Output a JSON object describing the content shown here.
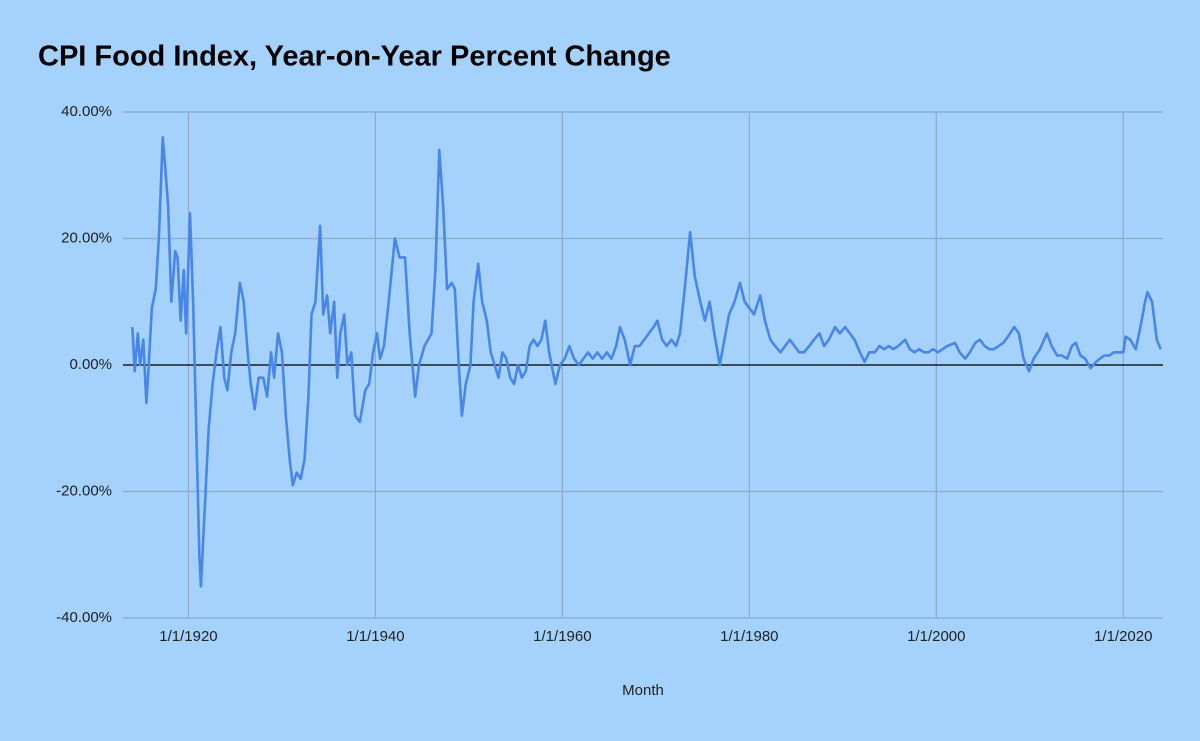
{
  "chart_data": {
    "type": "line",
    "title": "CPI Food Index, Year-on-Year Percent Change",
    "x_label": "Month",
    "color": "#4a86e8",
    "grid": true,
    "xlim": [
      "1/1/1913",
      "4/1/2024"
    ],
    "xticks": [
      "1/1/1920",
      "1/1/1940",
      "1/1/1960",
      "1/1/1980",
      "1/1/2000",
      "1/1/2020"
    ],
    "ylim": [
      -40,
      40
    ],
    "yticks": [
      {
        "value": -40,
        "label": "-40.00%"
      },
      {
        "value": -20,
        "label": "-20.00%"
      },
      {
        "value": 0,
        "label": "0.00%"
      },
      {
        "value": 20,
        "label": "20.00%"
      },
      {
        "value": 40,
        "label": "40.00%"
      }
    ],
    "x": [
      "1/1/1914",
      "4/1/1914",
      "8/1/1914",
      "11/1/1914",
      "3/1/1915",
      "7/1/1915",
      "10/1/1915",
      "2/1/1916",
      "7/1/1916",
      "11/1/1916",
      "4/1/1917",
      "8/1/1917",
      "11/1/1917",
      "3/1/1918",
      "8/1/1918",
      "11/1/1918",
      "3/1/1919",
      "7/1/1919",
      "10/1/1919",
      "3/1/1920",
      "7/1/1920",
      "11/1/1920",
      "3/1/1921",
      "5/1/1921",
      "11/1/1921",
      "3/1/1922",
      "8/1/1922",
      "1/1/1923",
      "6/1/1923",
      "11/1/1923",
      "3/1/1924",
      "8/1/1924",
      "1/1/1925",
      "7/1/1925",
      "12/1/1925",
      "5/1/1926",
      "9/1/1926",
      "2/1/1927",
      "7/1/1927",
      "1/1/1928",
      "6/1/1928",
      "11/1/1928",
      "3/1/1929",
      "8/1/1929",
      "1/1/1930",
      "6/1/1930",
      "11/1/1930",
      "3/1/1931",
      "8/1/1931",
      "1/1/1932",
      "6/1/1932",
      "11/1/1932",
      "3/1/1933",
      "8/1/1933",
      "2/1/1934",
      "6/1/1934",
      "11/1/1934",
      "3/1/1935",
      "8/1/1935",
      "12/1/1935",
      "4/1/1936",
      "9/1/1936",
      "1/1/1937",
      "6/1/1937",
      "11/1/1937",
      "5/1/1938",
      "12/1/1938",
      "5/1/1939",
      "10/1/1939",
      "3/1/1940",
      "7/1/1940",
      "12/1/1940",
      "6/1/1941",
      "2/1/1942",
      "8/1/1942",
      "3/1/1943",
      "9/1/1943",
      "4/1/1944",
      "9/1/1944",
      "4/1/1945",
      "1/1/1946",
      "6/1/1946",
      "11/1/1946",
      "4/1/1947",
      "9/1/1947",
      "3/1/1948",
      "7/1/1948",
      "12/1/1948",
      "4/1/1949",
      "9/1/1949",
      "3/1/1950",
      "7/1/1950",
      "1/1/1951",
      "6/1/1951",
      "12/1/1951",
      "5/1/1952",
      "10/1/1952",
      "3/1/1953",
      "8/1/1953",
      "1/1/1954",
      "6/1/1954",
      "11/1/1954",
      "4/1/1955",
      "9/1/1955",
      "2/1/1956",
      "7/1/1956",
      "12/1/1956",
      "5/1/1957",
      "10/1/1957",
      "3/1/1958",
      "8/1/1958",
      "4/1/1959",
      "10/1/1959",
      "4/1/1960",
      "10/1/1960",
      "4/1/1961",
      "10/1/1961",
      "4/1/1962",
      "10/1/1962",
      "4/1/1963",
      "10/1/1963",
      "4/1/1964",
      "10/1/1964",
      "4/1/1965",
      "10/1/1965",
      "3/1/1966",
      "9/1/1966",
      "4/1/1967",
      "10/1/1967",
      "4/1/1968",
      "10/1/1968",
      "4/1/1969",
      "10/1/1969",
      "3/1/1970",
      "9/1/1970",
      "3/1/1971",
      "9/1/1971",
      "3/1/1972",
      "8/1/1972",
      "2/1/1973",
      "9/1/1973",
      "3/1/1974",
      "10/1/1974",
      "4/1/1975",
      "10/1/1975",
      "4/1/1976",
      "11/1/1976",
      "5/1/1977",
      "11/1/1977",
      "6/1/1978",
      "1/1/1979",
      "7/1/1979",
      "1/1/1980",
      "7/1/1980",
      "3/1/1981",
      "9/1/1981",
      "4/1/1982",
      "10/1/1982",
      "5/1/1983",
      "11/1/1983",
      "5/1/1984",
      "11/1/1984",
      "5/1/1985",
      "11/1/1985",
      "6/1/1986",
      "12/1/1986",
      "7/1/1987",
      "1/1/1988",
      "7/1/1988",
      "3/1/1989",
      "9/1/1989",
      "4/1/1990",
      "10/1/1990",
      "4/1/1991",
      "11/1/1991",
      "5/1/1992",
      "11/1/1992",
      "6/1/1993",
      "12/1/1993",
      "6/1/1994",
      "12/1/1994",
      "6/1/1995",
      "12/1/1995",
      "9/1/1996",
      "3/1/1997",
      "9/1/1997",
      "3/1/1998",
      "9/1/1998",
      "3/1/1999",
      "9/1/1999",
      "3/1/2000",
      "9/1/2000",
      "3/1/2001",
      "1/1/2002",
      "7/1/2002",
      "2/1/2003",
      "8/1/2003",
      "3/1/2004",
      "9/1/2004",
      "3/1/2005",
      "9/1/2005",
      "3/1/2006",
      "9/1/2006",
      "3/1/2007",
      "9/1/2007",
      "5/1/2008",
      "11/1/2008",
      "5/1/2009",
      "12/1/2009",
      "6/1/2010",
      "2/1/2011",
      "11/1/2011",
      "5/1/2012",
      "12/1/2012",
      "6/1/2013",
      "1/1/2014",
      "7/1/2014",
      "12/1/2014",
      "6/1/2015",
      "12/1/2015",
      "7/1/2016",
      "2/1/2017",
      "7/1/2017",
      "1/1/2018",
      "7/1/2018",
      "1/1/2019",
      "7/1/2019",
      "1/1/2020",
      "4/1/2020",
      "10/1/2020",
      "5/1/2021",
      "11/1/2021",
      "5/1/2022",
      "8/1/2022",
      "2/1/2023",
      "8/1/2023",
      "1/1/2024"
    ],
    "values": [
      6,
      -1,
      5,
      0,
      4,
      -6,
      0,
      9,
      12,
      20,
      36,
      30,
      25,
      10,
      18,
      17,
      7,
      15,
      5,
      24,
      10,
      -10,
      -30,
      -35,
      -20,
      -10,
      -3,
      2,
      6,
      -2,
      -4,
      2,
      5,
      13,
      10,
      2,
      -3,
      -7,
      -2,
      -2,
      -5,
      2,
      -2,
      5,
      2,
      -8,
      -15,
      -19,
      -17,
      -18,
      -15,
      -5,
      8,
      10,
      22,
      8,
      11,
      5,
      10,
      -2,
      5,
      8,
      0,
      2,
      -8,
      -9,
      -4,
      -3,
      2,
      5,
      1,
      3,
      10,
      20,
      17,
      17,
      5,
      -5,
      0,
      3,
      5,
      15,
      34,
      25,
      12,
      13,
      12,
      0,
      -8,
      -3,
      0,
      10,
      16,
      10,
      7,
      2,
      0,
      -2,
      2,
      1,
      -2,
      -3,
      0,
      -2,
      -1,
      3,
      4,
      3,
      4,
      7,
      2,
      -3,
      0,
      1,
      3,
      1,
      0,
      1,
      2,
      1,
      2,
      1,
      2,
      1,
      3,
      6,
      4,
      0,
      3,
      3,
      4,
      5,
      6,
      7,
      4,
      3,
      4,
      3,
      5,
      12,
      21,
      14,
      10,
      7,
      10,
      5,
      0,
      4,
      8,
      10,
      13,
      10,
      9,
      8,
      11,
      7,
      4,
      3,
      2,
      3,
      4,
      3,
      2,
      2,
      3,
      4,
      5,
      3,
      4,
      6,
      5,
      6,
      5,
      4,
      2,
      0.5,
      2,
      2,
      3,
      2.5,
      3,
      2.5,
      3,
      4,
      2.5,
      2,
      2.5,
      2,
      2,
      2.5,
      2,
      2.5,
      3,
      3.5,
      2,
      1,
      2,
      3.5,
      4,
      3,
      2.5,
      2.5,
      3,
      3.5,
      4.5,
      6,
      5,
      1,
      -1,
      1,
      2.5,
      5,
      3,
      1.5,
      1.5,
      1,
      3,
      3.5,
      1.5,
      1,
      -0.5,
      0.5,
      1,
      1.5,
      1.5,
      2,
      2,
      2,
      4.5,
      4,
      2.5,
      6,
      10,
      11.5,
      10,
      4,
      2.5
    ]
  }
}
